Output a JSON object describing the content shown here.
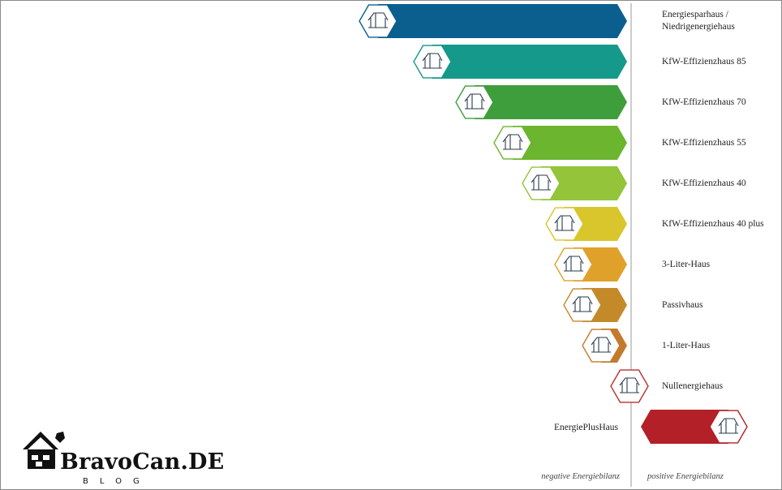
{
  "levels": [
    {
      "label_lines": [
        "Energiesparhaus /",
        "Niedrigenergiehaus"
      ],
      "color": "#0a5f8f"
    },
    {
      "label_lines": [
        "KfW-Effizienzhaus 85"
      ],
      "color": "#14998a"
    },
    {
      "label_lines": [
        "KfW-Effizienzhaus 70"
      ],
      "color": "#3e9e3c"
    },
    {
      "label_lines": [
        "KfW-Effizienzhaus 55"
      ],
      "color": "#6cb52e"
    },
    {
      "label_lines": [
        "KfW-Effizienzhaus 40"
      ],
      "color": "#93c43a"
    },
    {
      "label_lines": [
        "KfW-Effizienzhaus 40 plus"
      ],
      "color": "#d9c62c"
    },
    {
      "label_lines": [
        "3-Liter-Haus"
      ],
      "color": "#e0a12a"
    },
    {
      "label_lines": [
        "Passivhaus"
      ],
      "color": "#c48a2a"
    },
    {
      "label_lines": [
        "1-Liter-Haus"
      ],
      "color": "#c47a2c"
    },
    {
      "label_lines": [
        "Nullenergiehaus"
      ],
      "color": "#b8322c"
    }
  ],
  "plus_level": {
    "label": "EnergiePlusHaus",
    "color": "#b32028"
  },
  "axis": {
    "negative": "negative Energiebilanz",
    "positive": "positive Energiebilanz"
  },
  "logo": {
    "name": "BravoCan.DE",
    "sub": "BLOG"
  },
  "icon": "house-icon"
}
